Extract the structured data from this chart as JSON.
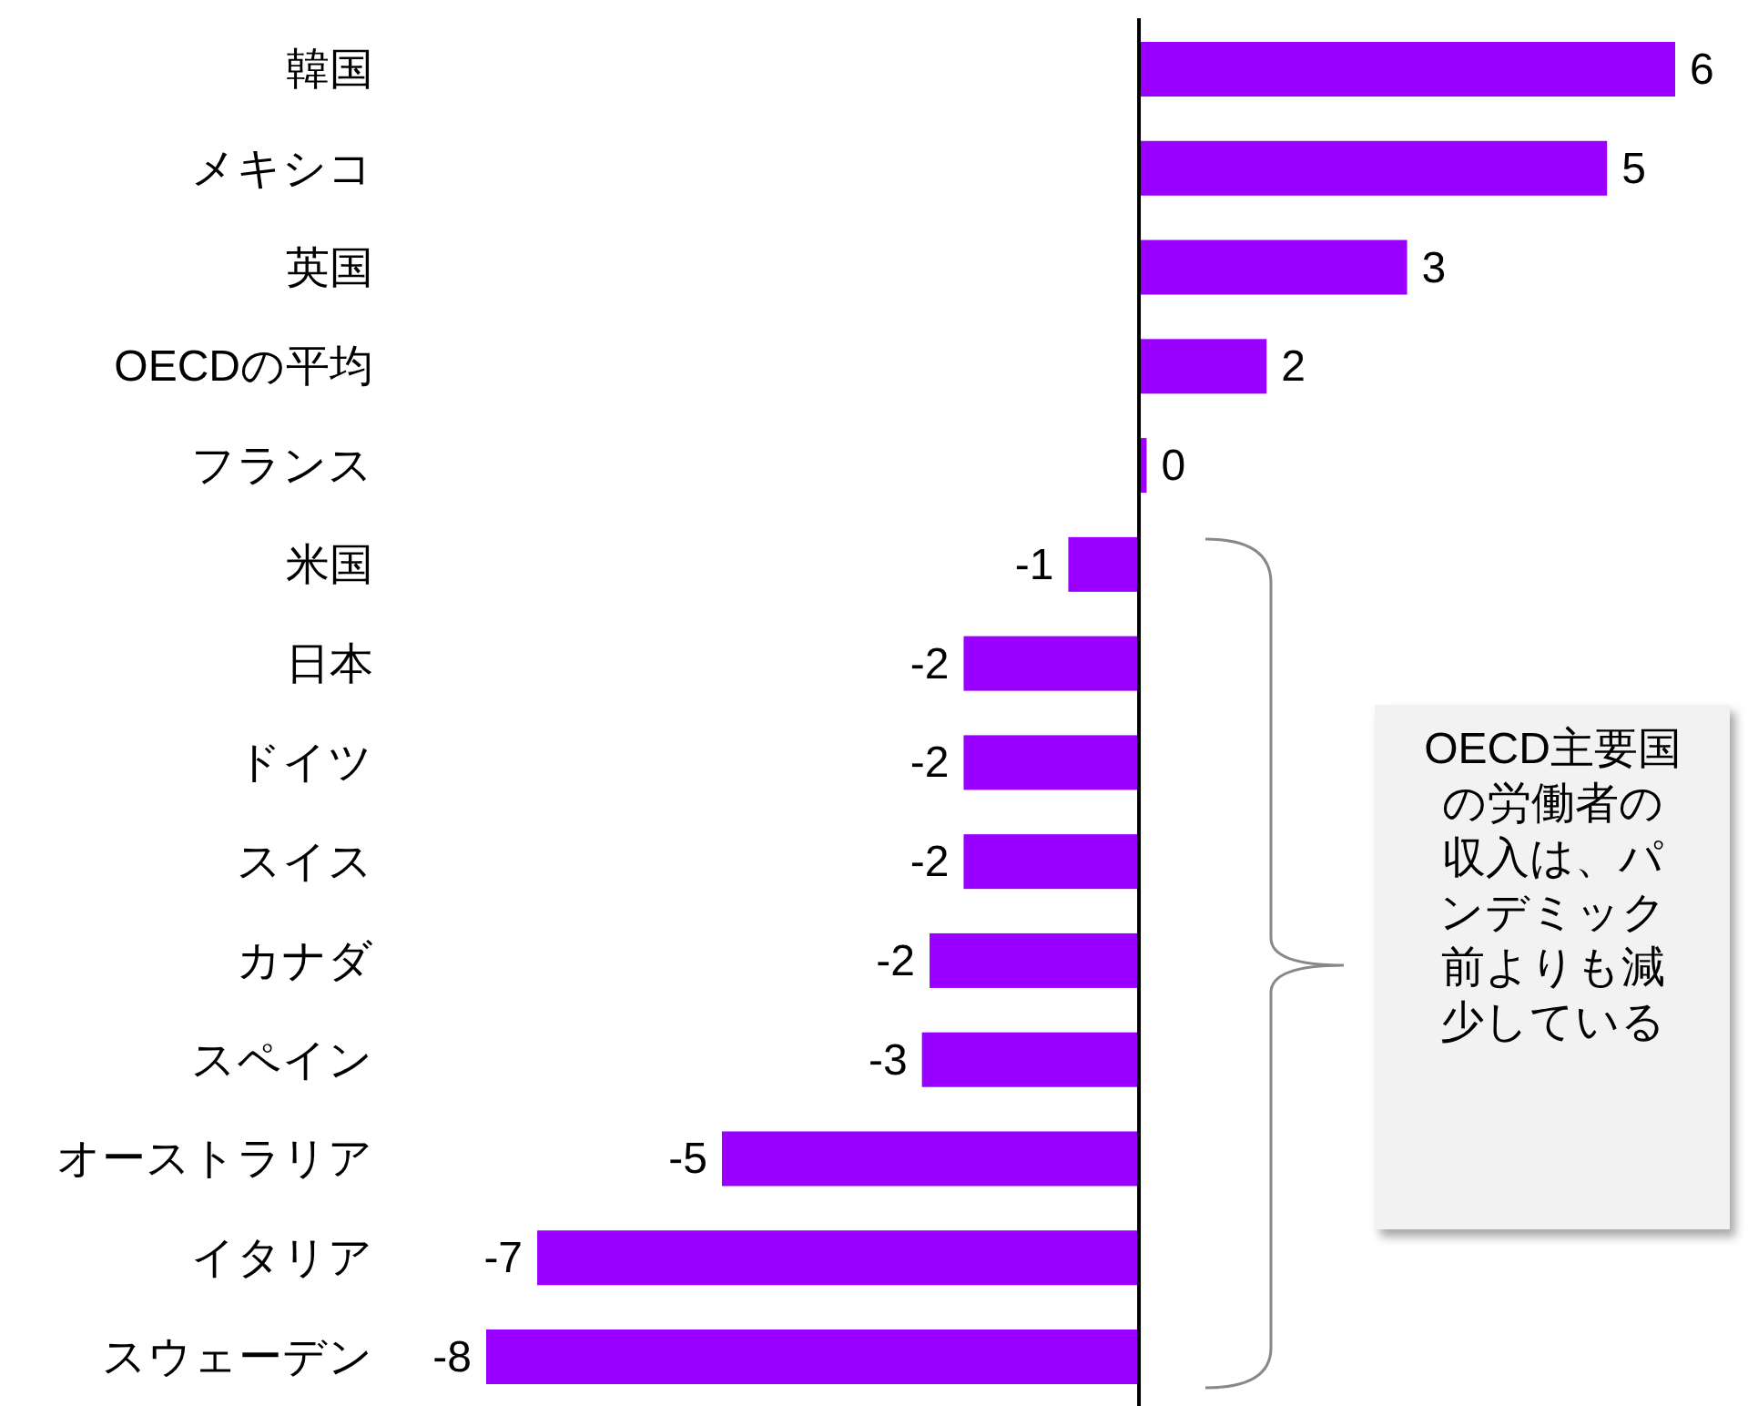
{
  "chart_data": {
    "type": "bar",
    "orientation": "horizontal",
    "color": "#9900ff",
    "categories": [
      "韓国",
      "メキシコ",
      "英国",
      "OECDの平均",
      "フランス",
      "米国",
      "日本",
      "ドイツ",
      "スイス",
      "カナダ",
      "スペイン",
      "オーストラリア",
      "イタリア",
      "スウェーデン"
    ],
    "values": [
      6.3,
      5.5,
      3.15,
      1.5,
      0.09,
      -0.83,
      -2.06,
      -2.06,
      -2.06,
      -2.46,
      -2.55,
      -4.9,
      -7.07,
      -7.67
    ],
    "value_labels": [
      "6",
      "5",
      "3",
      "2",
      "0",
      "-1",
      "-2",
      "-2",
      "-2",
      "-2",
      "-3",
      "-5",
      "-7",
      "-8"
    ],
    "annotations": [
      "OECD主要国の労働者の収入は、パンデミック前よりも減少している"
    ]
  }
}
